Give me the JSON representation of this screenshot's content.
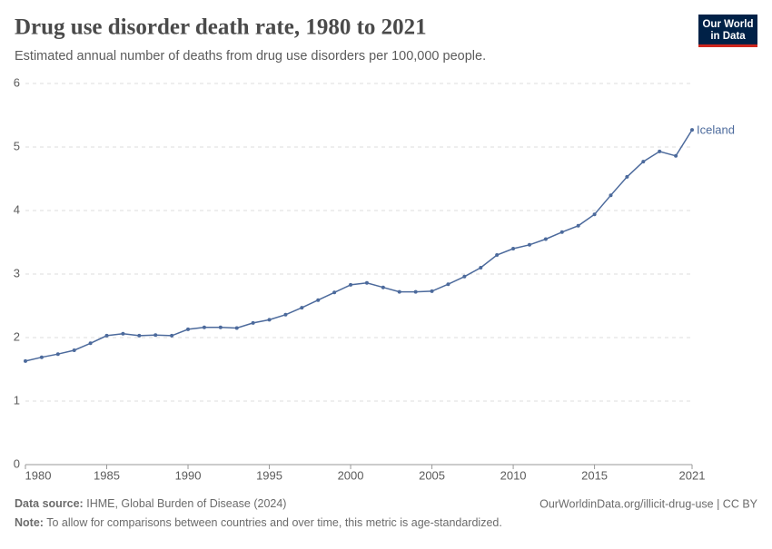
{
  "chart_data": {
    "type": "line",
    "title": "Drug use disorder death rate, 1980 to 2021",
    "subtitle": "Estimated annual number of deaths from drug use disorders per 100,000 people.",
    "logo": [
      "Our World",
      "in Data"
    ],
    "source_label": "Data source:",
    "source": "IHME, Global Burden of Disease (2024)",
    "url": "OurWorldinData.org/illicit-drug-use | CC BY",
    "note_label": "Note:",
    "note": "To allow for comparisons between countries and over time, this metric is age-standardized.",
    "x": [
      1980,
      1981,
      1982,
      1983,
      1984,
      1985,
      1986,
      1987,
      1988,
      1989,
      1990,
      1991,
      1992,
      1993,
      1994,
      1995,
      1996,
      1997,
      1998,
      1999,
      2000,
      2001,
      2002,
      2003,
      2004,
      2005,
      2006,
      2007,
      2008,
      2009,
      2010,
      2011,
      2012,
      2013,
      2014,
      2015,
      2016,
      2017,
      2018,
      2019,
      2020,
      2021
    ],
    "series": [
      {
        "name": "Iceland",
        "color": "#4c6a9c",
        "values": [
          1.63,
          1.69,
          1.74,
          1.8,
          1.91,
          2.03,
          2.06,
          2.03,
          2.04,
          2.03,
          2.13,
          2.16,
          2.16,
          2.15,
          2.23,
          2.28,
          2.36,
          2.47,
          2.59,
          2.71,
          2.83,
          2.86,
          2.79,
          2.72,
          2.72,
          2.73,
          2.84,
          2.96,
          3.1,
          3.3,
          3.4,
          3.46,
          3.55,
          3.66,
          3.76,
          3.94,
          4.24,
          4.53,
          4.77,
          4.93,
          4.86,
          5.27
        ]
      }
    ],
    "xlim": [
      1980,
      2021
    ],
    "xticks": [
      1980,
      1985,
      1990,
      1995,
      2000,
      2005,
      2010,
      2015,
      2021
    ],
    "ylim": [
      0,
      6
    ],
    "yticks": [
      0,
      1,
      2,
      3,
      4,
      5,
      6
    ],
    "grid": true
  }
}
